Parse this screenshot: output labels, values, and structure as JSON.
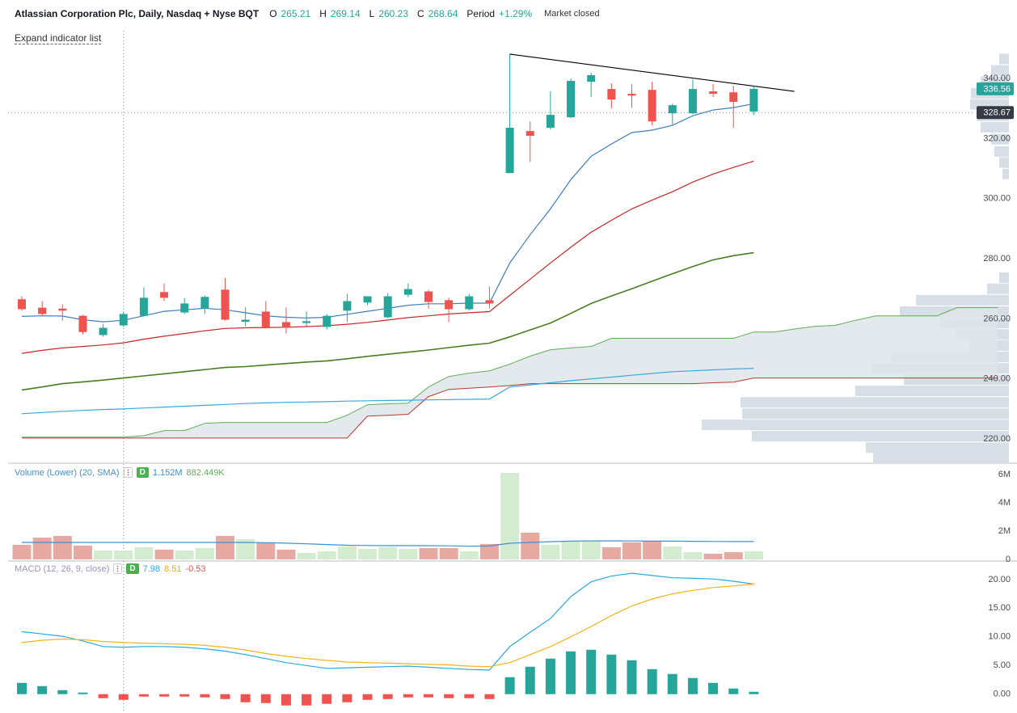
{
  "header": {
    "title": "Atlassian Corporation Plc, Daily, Nasdaq + Nyse BQT",
    "ohlc": [
      {
        "label": "O",
        "value": 265.21
      },
      {
        "label": "H",
        "value": 269.14
      },
      {
        "label": "L",
        "value": 260.23
      },
      {
        "label": "C",
        "value": 268.64
      }
    ],
    "period_label": "Period",
    "period_value": "+1.29%",
    "status": "Market closed",
    "expand": "Expand indicator list"
  },
  "chart_data": [
    {
      "type": "candlestick",
      "open": [
        266.5,
        263.7,
        263.4,
        261.0,
        254.6,
        257.8,
        261.0,
        268.9,
        262.1,
        263.4,
        269.7,
        259.0,
        262.4,
        258.9,
        258.6,
        257.3,
        262.7,
        265.4,
        260.5,
        268.0,
        269.1,
        266.2,
        263.2,
        266.2,
        308.5,
        322.5,
        323.6,
        327.1,
        338.9,
        336.5,
        334.9,
        336.2,
        328.4,
        328.4,
        335.7,
        335.4,
        329.0
      ],
      "high": [
        267.5,
        265.9,
        264.8,
        261.3,
        258.3,
        262.4,
        270.5,
        271.8,
        266.9,
        267.8,
        273.7,
        263.9,
        265.9,
        263.7,
        262.4,
        261.6,
        268.3,
        267.5,
        268.6,
        271.8,
        269.7,
        267.0,
        268.3,
        270.7,
        348.1,
        325.7,
        335.7,
        340.0,
        341.9,
        338.4,
        338.1,
        338.9,
        331.6,
        339.7,
        338.1,
        337.6,
        337.3
      ],
      "low": [
        262.7,
        261.0,
        259.4,
        254.8,
        254.0,
        257.3,
        261.0,
        265.9,
        261.6,
        261.6,
        259.4,
        257.5,
        256.7,
        255.1,
        257.5,
        256.5,
        258.9,
        264.6,
        260.2,
        267.2,
        263.4,
        258.9,
        262.7,
        263.4,
        308.5,
        312.2,
        323.0,
        326.8,
        333.8,
        330.0,
        330.3,
        324.4,
        324.4,
        328.1,
        333.8,
        323.6,
        327.9
      ],
      "close": [
        263.2,
        261.6,
        262.7,
        255.6,
        257.0,
        261.6,
        267.0,
        267.0,
        265.1,
        267.3,
        259.7,
        259.7,
        257.3,
        257.0,
        259.2,
        261.0,
        265.9,
        267.5,
        267.5,
        269.9,
        265.6,
        263.2,
        267.5,
        265.1,
        323.6,
        320.9,
        327.9,
        339.2,
        341.1,
        333.0,
        334.3,
        325.7,
        331.1,
        336.5,
        334.9,
        332.2,
        336.56
      ],
      "up_color": "#26a69a",
      "down_color": "#ef5350",
      "ylim": [
        212.2,
        355.9
      ],
      "yticks": [
        {
          "value": 220,
          "label": "220.00"
        },
        {
          "value": 240,
          "label": "240.00"
        },
        {
          "value": 260,
          "label": "260.00"
        },
        {
          "value": 280,
          "label": "280.00"
        },
        {
          "value": 300,
          "label": "300.00"
        },
        {
          "value": 320,
          "label": "320.00"
        },
        {
          "value": 340,
          "label": "340.00"
        }
      ],
      "lines": [
        {
          "color": "#3f7fbf",
          "values": [
            260.8,
            261.0,
            260.9,
            259.7,
            259.0,
            259.5,
            261.0,
            262.5,
            263.0,
            263.5,
            263.0,
            262.0,
            261.0,
            260.5,
            260.3,
            260.5,
            261.5,
            262.5,
            263.5,
            264.5,
            265.0,
            265.0,
            265.2,
            265.2,
            278.6,
            288.0,
            296.6,
            306.3,
            314.1,
            318.2,
            322.0,
            322.8,
            324.4,
            327.6,
            329.5,
            330.3,
            331.6
          ]
        },
        {
          "color": "#c62828",
          "values": [
            248.5,
            249.5,
            250.3,
            250.8,
            251.3,
            252.0,
            253.2,
            254.2,
            255.1,
            256.0,
            256.8,
            257.0,
            257.1,
            257.2,
            257.4,
            257.7,
            258.2,
            258.8,
            259.6,
            260.4,
            261.0,
            261.6,
            262.0,
            262.4,
            267.8,
            273.2,
            278.6,
            283.8,
            288.8,
            292.8,
            296.6,
            299.5,
            302.3,
            305.5,
            308.2,
            310.4,
            312.5
          ]
        },
        {
          "color": "#4a7d22",
          "values": [
            236.3,
            237.3,
            238.4,
            239.0,
            239.6,
            240.3,
            241.0,
            241.7,
            242.4,
            243.1,
            243.8,
            244.1,
            244.6,
            245.1,
            245.6,
            246.0,
            246.7,
            247.5,
            248.2,
            248.9,
            249.6,
            250.4,
            251.2,
            251.9,
            254.0,
            256.3,
            258.6,
            261.8,
            265.1,
            267.6,
            270.0,
            272.5,
            275.0,
            277.4,
            279.6,
            281.0,
            282.0
          ]
        },
        {
          "color": "#35a9dd",
          "values": [
            228.4,
            228.8,
            229.2,
            229.5,
            229.8,
            230.0,
            230.3,
            230.6,
            230.9,
            231.2,
            231.5,
            231.8,
            232.0,
            232.2,
            232.3,
            232.4,
            232.6,
            232.7,
            232.8,
            232.9,
            233.0,
            233.1,
            233.2,
            233.3,
            237.3,
            238.0,
            238.7,
            239.4,
            240.0,
            240.6,
            241.2,
            241.8,
            242.4,
            242.7,
            243.0,
            243.3,
            243.5
          ]
        }
      ],
      "cloud": {
        "upper_color": "#5fae5a",
        "lower_color": "#b23a2e",
        "fill": "#dfe5ea",
        "upper": [
          220.6,
          220.6,
          220.6,
          220.6,
          220.6,
          220.6,
          221.1,
          222.8,
          222.8,
          225.2,
          225.5,
          225.5,
          225.5,
          225.5,
          225.5,
          225.5,
          227.9,
          231.4,
          231.7,
          231.9,
          237.3,
          240.8,
          241.9,
          242.7,
          244.9,
          247.6,
          249.7,
          250.3,
          250.8,
          253.5,
          253.5,
          253.5,
          253.5,
          253.5,
          253.5,
          253.5,
          255.6,
          255.6,
          256.6,
          257.5,
          257.8,
          259.5,
          261.0,
          261.0,
          261.0,
          261.0,
          263.7,
          263.7,
          263.7
        ],
        "lower": [
          220.3,
          220.3,
          220.3,
          220.3,
          220.3,
          220.3,
          220.3,
          220.3,
          220.3,
          220.3,
          220.3,
          220.3,
          220.3,
          220.3,
          220.3,
          220.3,
          220.3,
          227.6,
          227.9,
          228.2,
          234.1,
          236.5,
          236.9,
          237.3,
          237.8,
          238.4,
          238.4,
          238.4,
          238.4,
          238.4,
          238.4,
          238.4,
          238.4,
          238.4,
          238.7,
          238.9,
          240.3,
          240.3,
          240.3,
          240.3,
          240.3,
          240.3,
          240.3,
          240.3,
          240.3,
          240.3,
          240.3,
          240.3,
          240.3
        ]
      },
      "trendline": {
        "x": [
          24,
          38
        ],
        "values": [
          348.1,
          335.7
        ],
        "color": "#000000"
      },
      "volume_profile": {
        "color": "#d3dae3",
        "prices": [
          213.6,
          217.1,
          220.9,
          224.7,
          228.4,
          232.2,
          236.0,
          239.7,
          243.5,
          247.3,
          251.1,
          254.8,
          258.6,
          262.4,
          266.2,
          270.0,
          273.7,
          308.2,
          312.0,
          315.7,
          319.8,
          323.8,
          327.6,
          331.4,
          335.1,
          338.9,
          342.7,
          346.5
        ],
        "values": [
          168,
          177,
          318,
          380,
          330,
          332,
          190,
          130,
          170,
          145,
          50,
          65,
          85,
          135,
          115,
          27,
          12,
          8,
          12,
          18,
          22,
          35,
          40,
          48,
          47,
          35,
          22,
          12
        ]
      },
      "price_tags": [
        {
          "value": 336.56,
          "color": "#26a69a"
        },
        {
          "value": 328.67,
          "color": "#363a45"
        }
      ],
      "crosshair": {
        "x": 5,
        "y": 328.67
      }
    },
    {
      "type": "bar",
      "legend": {
        "title": "Volume (Lower) (20, SMA)",
        "badge": "D",
        "readouts": [
          {
            "value": 1152000,
            "label": "1.152M",
            "color": "#2f8fd8"
          },
          {
            "value": 882449,
            "label": "882.449K",
            "color": "#5fae5a"
          }
        ]
      },
      "values": [
        1030000,
        1540000,
        1660000,
        970000,
        630000,
        630000,
        860000,
        690000,
        630000,
        800000,
        1660000,
        1430000,
        1200000,
        690000,
        460000,
        570000,
        910000,
        740000,
        860000,
        740000,
        800000,
        800000,
        570000,
        1090000,
        6110000,
        1890000,
        1030000,
        1260000,
        1260000,
        860000,
        1200000,
        1310000,
        910000,
        510000,
        400000,
        510000,
        570000
      ],
      "up_color": "#d3ecd0",
      "down_color": "#e6aaa2",
      "sma": {
        "color": "#3f8fd0",
        "values": [
          1200000,
          1200000,
          1200000,
          1200000,
          1200000,
          1200000,
          1200000,
          1200000,
          1200000,
          1200000,
          1200000,
          1200000,
          1180000,
          1150000,
          1100000,
          1050000,
          1000000,
          980000,
          970000,
          970000,
          970000,
          960000,
          930000,
          950000,
          1140000,
          1200000,
          1250000,
          1290000,
          1310000,
          1310000,
          1300000,
          1290000,
          1290000,
          1280000,
          1270000,
          1260000,
          1260000
        ]
      },
      "ylim": [
        0,
        6510000
      ],
      "yticks": [
        0,
        {
          "value": 2000000,
          "label": "2M"
        },
        {
          "value": 4000000,
          "label": "4M"
        },
        {
          "value": 6000000,
          "label": "6M"
        }
      ]
    },
    {
      "type": "macd",
      "legend": {
        "title": "MACD (12, 26, 9, close)",
        "badge": "D",
        "readouts": [
          {
            "value": 7.98,
            "color": "#29a8e0"
          },
          {
            "value": 8.51,
            "color": "#f0a818"
          },
          {
            "value": -0.53,
            "color": "#ef5350"
          }
        ]
      },
      "histogram": [
        1.97,
        1.41,
        0.7,
        0.28,
        -0.7,
        -0.99,
        -0.42,
        -0.42,
        -0.42,
        -0.56,
        -0.85,
        -1.41,
        -1.55,
        -1.97,
        -1.97,
        -1.69,
        -1.41,
        -0.99,
        -0.85,
        -0.56,
        -0.56,
        -0.7,
        -0.7,
        -0.85,
        2.96,
        4.79,
        6.2,
        7.46,
        7.75,
        6.9,
        5.92,
        4.37,
        3.52,
        2.82,
        1.97,
        0.99,
        0.42
      ],
      "positive_color": "#26a69a",
      "negative_color": "#ef5350",
      "macd": {
        "color": "#29a8e0",
        "values": [
          10.9,
          10.5,
          10.1,
          9.3,
          8.3,
          8.2,
          8.3,
          8.3,
          8.2,
          7.9,
          7.5,
          6.9,
          6.2,
          5.5,
          5.0,
          4.5,
          4.6,
          4.7,
          4.8,
          4.9,
          4.7,
          4.5,
          4.3,
          4.2,
          8.3,
          10.8,
          13.2,
          17.0,
          19.6,
          20.6,
          21.1,
          20.7,
          20.3,
          20.2,
          20.1,
          19.7,
          19.2
        ]
      },
      "signal": {
        "color": "#f5b31a",
        "values": [
          9.0,
          9.4,
          9.6,
          9.5,
          9.2,
          9.0,
          8.9,
          8.8,
          8.7,
          8.5,
          8.2,
          7.7,
          7.1,
          6.6,
          6.2,
          5.9,
          5.6,
          5.5,
          5.4,
          5.3,
          5.2,
          5.1,
          4.9,
          4.8,
          5.5,
          6.9,
          8.3,
          10.0,
          11.8,
          13.7,
          15.4,
          16.6,
          17.5,
          18.1,
          18.6,
          18.9,
          19.2
        ]
      },
      "ylim": [
        -3.0,
        22.8
      ],
      "yticks": [
        {
          "value": 0,
          "label": "0.00"
        },
        {
          "value": 5,
          "label": "5.00"
        },
        {
          "value": 10,
          "label": "10.00"
        },
        {
          "value": 15,
          "label": "15.00"
        },
        {
          "value": 20,
          "label": "20.00"
        }
      ]
    }
  ]
}
